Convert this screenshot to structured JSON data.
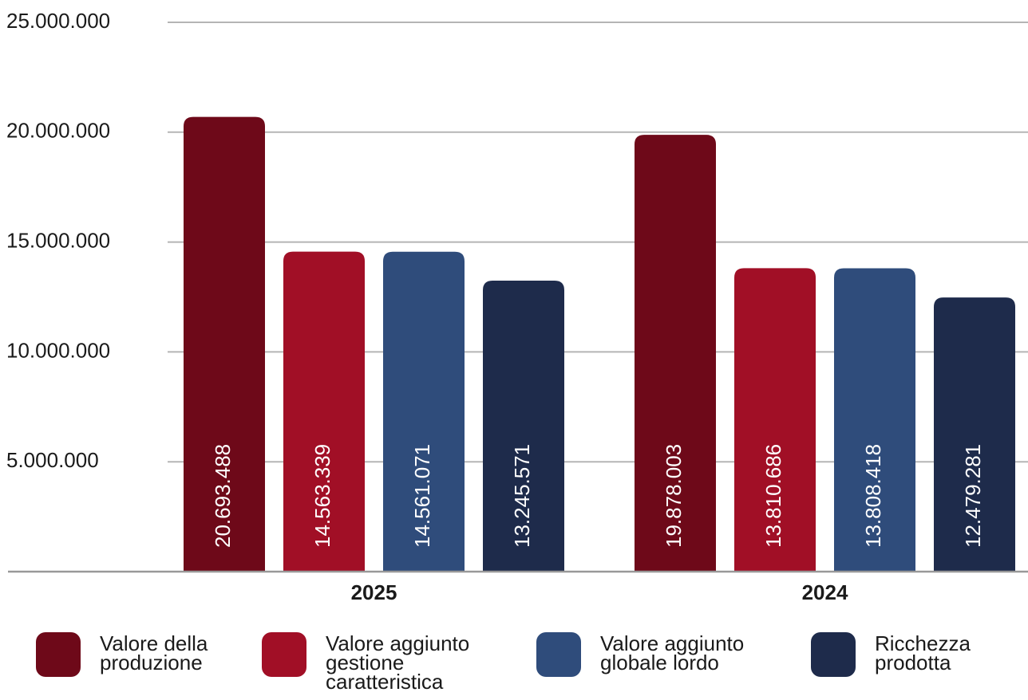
{
  "chart_data": {
    "type": "bar",
    "categories": [
      "2025",
      "2024"
    ],
    "series": [
      {
        "name": "Valore della produzione",
        "color": "#6e0919",
        "values": [
          20693488,
          19878003
        ],
        "value_labels": [
          "20.693.488",
          "19.878.003"
        ]
      },
      {
        "name": "Valore aggiunto gestione caratteristica",
        "color": "#a10f26",
        "values": [
          14563339,
          13810686
        ],
        "value_labels": [
          "14.563.339",
          "13.810.686"
        ]
      },
      {
        "name": "Valore aggiunto globale lordo",
        "color": "#2f4c7b",
        "values": [
          14561071,
          13808418
        ],
        "value_labels": [
          "14.561.071",
          "13.808.418"
        ]
      },
      {
        "name": "Ricchezza prodotta",
        "color": "#1e2b4b",
        "values": [
          13245571,
          12479281
        ],
        "value_labels": [
          "13.245.571",
          "12.479.281"
        ]
      }
    ],
    "ylim": [
      0,
      25000000
    ],
    "yticks": [
      {
        "value": 5000000,
        "label": "5.000.000"
      },
      {
        "value": 10000000,
        "label": "10.000.000"
      },
      {
        "value": 15000000,
        "label": "15.000.000"
      },
      {
        "value": 20000000,
        "label": "20.000.000"
      },
      {
        "value": 25000000,
        "label": "25.000.000"
      }
    ],
    "grid": true
  }
}
